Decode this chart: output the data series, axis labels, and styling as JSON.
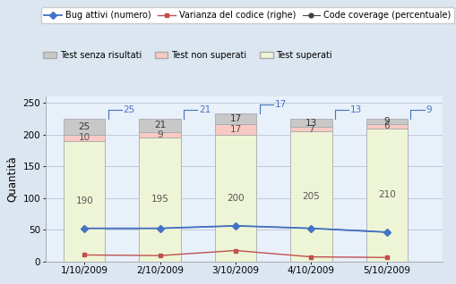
{
  "categories": [
    "1/10/2009",
    "2/10/2009",
    "3/10/2009",
    "4/10/2009",
    "5/10/2009"
  ],
  "test_superati": [
    190,
    195,
    200,
    205,
    210
  ],
  "test_non_superati": [
    10,
    9,
    17,
    7,
    6
  ],
  "test_senza_risultati": [
    25,
    21,
    17,
    13,
    9
  ],
  "bug_attivi": [
    52,
    52,
    56,
    52,
    46
  ],
  "color_superati": "#eef5d6",
  "color_non_superati": "#f9c9c4",
  "color_senza_risultati": "#c8c8c8",
  "color_bug_attivi": "#4472c4",
  "color_varianza": "#c0504d",
  "color_coverage": "#404040",
  "bar_edge_color": "#aaaaaa",
  "ylim": [
    0,
    260
  ],
  "yticks": [
    0,
    50,
    100,
    150,
    200,
    250
  ],
  "ylabel": "Quantità",
  "bg_color": "#dce6f1",
  "plot_bg_color": "#e8f0fa",
  "legend1_labels": [
    "Bug attivi (numero)",
    "Varianza del codice (righe)",
    "Code coverage (percentuale)"
  ],
  "legend2_labels": [
    "Test senza risultati",
    "Test non superati",
    "Test superati"
  ],
  "annotation_color": "#4472c4",
  "bar_width": 0.55
}
